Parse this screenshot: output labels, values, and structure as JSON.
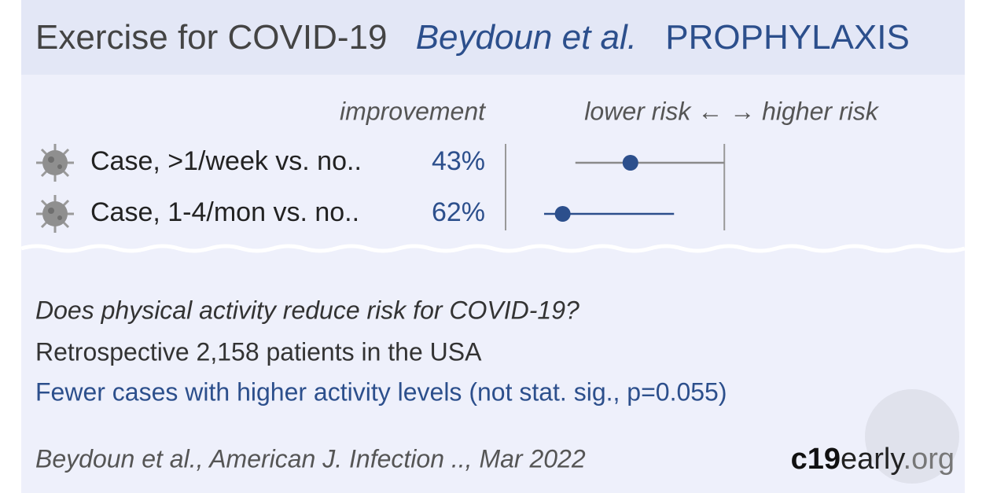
{
  "header": {
    "title": "Exercise for COVID-19",
    "authors": "Beydoun et al.",
    "category": "PROPHYLAXIS"
  },
  "chart_data": {
    "type": "forest",
    "value_label_title": "improvement",
    "x_label": "lower risk ← → higher risk",
    "categories": [
      "Case, >1/week vs. no..",
      "Case, 1-4/mon vs. no.."
    ],
    "values": [
      43,
      62
    ],
    "value_labels": [
      "43%",
      "62%"
    ],
    "risk": [
      0.57,
      0.38
    ],
    "ci_lower": [
      0.41,
      0.34
    ],
    "ci_upper": [
      1.0,
      0.74
    ],
    "colors": [
      "#8a8a8a",
      "#2c4f8c"
    ],
    "point_color": "#2c4f8c",
    "xlim": [
      0.27,
      2.8
    ],
    "log_scale": true,
    "reference_line": 1
  },
  "summary": {
    "question": "Does physical activity reduce risk for COVID-19?",
    "design": "Retrospective 2,158 patients in the USA",
    "conclusion": "Fewer cases with higher activity levels (not stat. sig., p=0.055)"
  },
  "footer": {
    "citation": "Beydoun et al., American J. Infection .., Mar 2022",
    "logo_bold": "c19",
    "logo_mid": "early",
    "logo_end": ".org"
  }
}
